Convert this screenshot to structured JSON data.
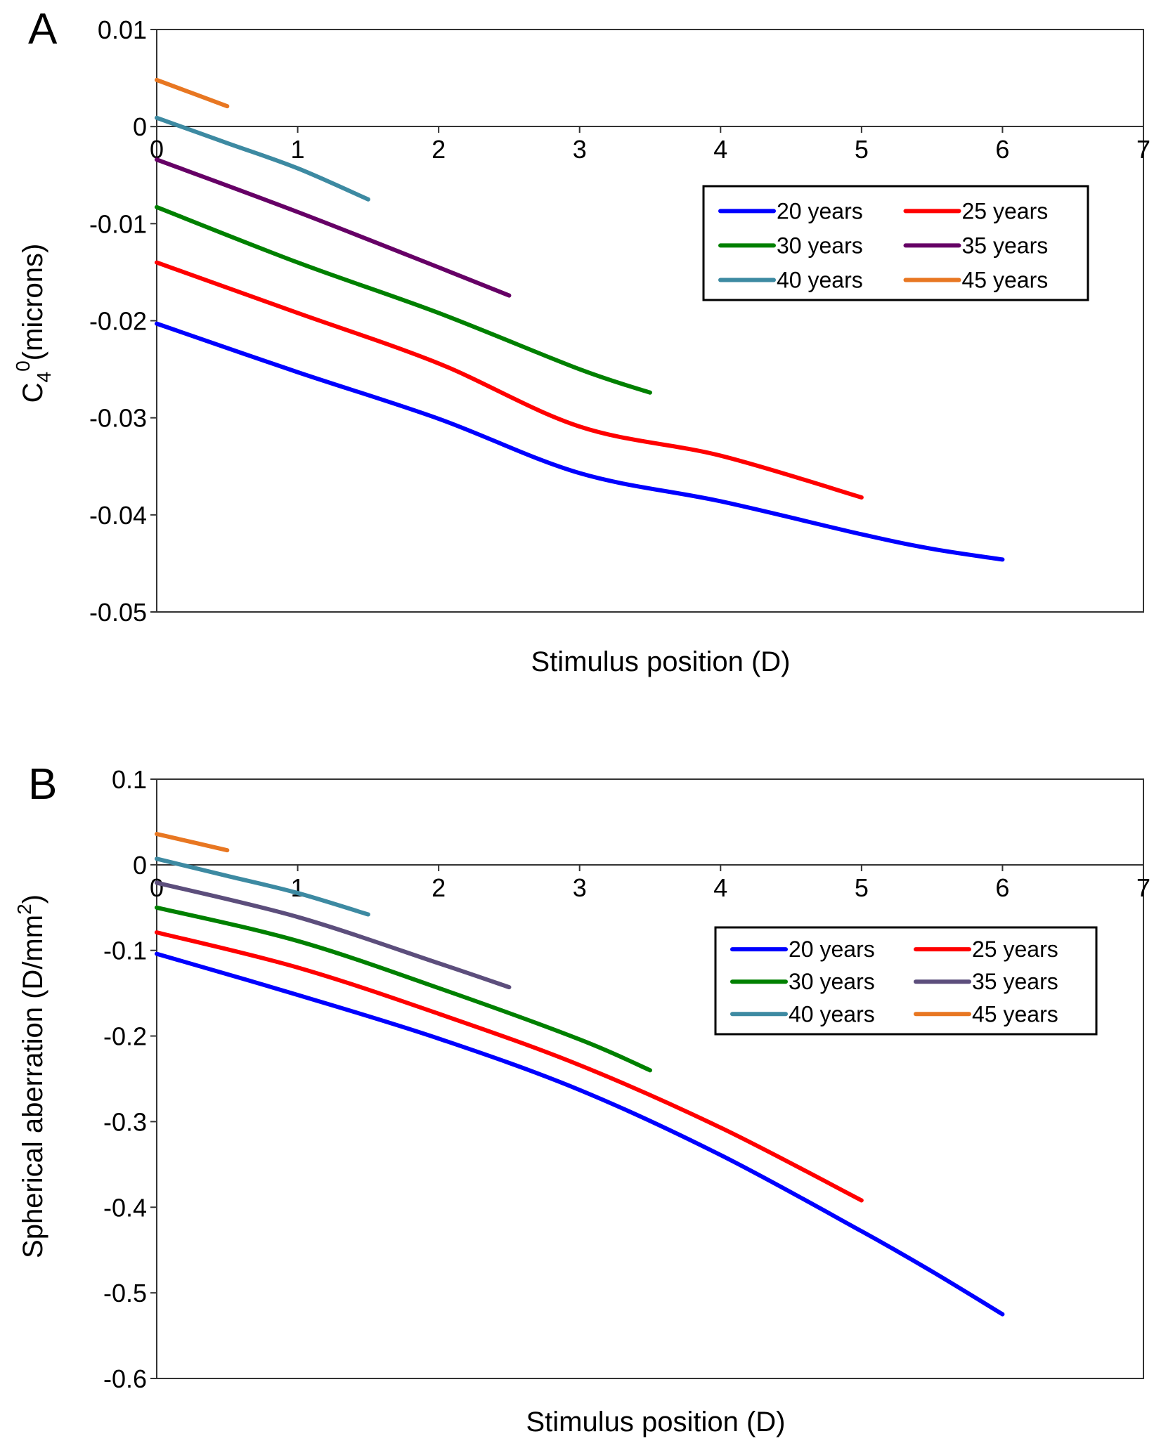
{
  "chart_data": [
    {
      "panel": "A",
      "type": "line",
      "xlabel": "Stimulus position (D)",
      "ylabel": "C4^0(microns)",
      "ylabel_parts": {
        "base": "C",
        "sub": "4",
        "sup": "0",
        "rest": "(microns)"
      },
      "xlim": [
        0,
        7
      ],
      "ylim": [
        -0.05,
        0.01
      ],
      "xticks": [
        0,
        1,
        2,
        3,
        4,
        5,
        6,
        7
      ],
      "xtick_labels": [
        "0",
        "1",
        "2",
        "3",
        "4",
        "5",
        "6",
        "7"
      ],
      "yticks": [
        0.01,
        0,
        -0.01,
        -0.02,
        -0.03,
        -0.04,
        -0.05
      ],
      "ytick_labels": [
        "0.01",
        "0",
        "-0.01",
        "-0.02",
        "-0.03",
        "-0.04",
        "-0.05"
      ],
      "grid": false,
      "legend_position": "upper-right",
      "series": [
        {
          "name": "20 years",
          "color": "#0000ff",
          "x": [
            0,
            1,
            2,
            3,
            4,
            5,
            5.5,
            6
          ],
          "y": [
            -0.0203,
            -0.0253,
            -0.0301,
            -0.0357,
            -0.0386,
            -0.042,
            -0.0435,
            -0.0446
          ]
        },
        {
          "name": "25 years",
          "color": "#ff0000",
          "x": [
            0,
            1,
            2,
            3,
            4,
            5
          ],
          "y": [
            -0.014,
            -0.0192,
            -0.0244,
            -0.0309,
            -0.0339,
            -0.0382
          ]
        },
        {
          "name": "30 years",
          "color": "#008000",
          "x": [
            0,
            1,
            2,
            3,
            3.5
          ],
          "y": [
            -0.0083,
            -0.014,
            -0.0192,
            -0.025,
            -0.0274
          ]
        },
        {
          "name": "35 years",
          "color": "#660066",
          "x": [
            0,
            1,
            2,
            2.5
          ],
          "y": [
            -0.0034,
            -0.0088,
            -0.0145,
            -0.0174
          ]
        },
        {
          "name": "40 years",
          "color": "#3d8aa2",
          "x": [
            0,
            0.5,
            1,
            1.5
          ],
          "y": [
            0.0009,
            -0.0017,
            -0.0043,
            -0.0075
          ]
        },
        {
          "name": "45 years",
          "color": "#e87722",
          "x": [
            0,
            0.5
          ],
          "y": [
            0.0048,
            0.0021
          ]
        }
      ]
    },
    {
      "panel": "B",
      "type": "line",
      "xlabel": "Stimulus position (D)",
      "ylabel": "Spherical aberration (D/mm2)",
      "ylabel_parts": {
        "base": "Spherical aberration (D/mm",
        "sup": "2",
        "rest": ")"
      },
      "xlim": [
        0,
        7
      ],
      "ylim": [
        -0.6,
        0.1
      ],
      "xticks": [
        0,
        1,
        2,
        3,
        4,
        5,
        6,
        7
      ],
      "xtick_labels": [
        "0",
        "1",
        "2",
        "3",
        "4",
        "5",
        "6",
        "7"
      ],
      "yticks": [
        0.1,
        0,
        -0.1,
        -0.2,
        -0.3,
        -0.4,
        -0.5,
        -0.6
      ],
      "ytick_labels": [
        "0.1",
        "0",
        "-0.1",
        "-0.2",
        "-0.3",
        "-0.4",
        "-0.5",
        "-0.6"
      ],
      "grid": false,
      "legend_position": "upper-right",
      "series": [
        {
          "name": "20 years",
          "color": "#0000ff",
          "x": [
            0,
            1,
            2,
            3,
            4,
            5,
            5.5,
            6
          ],
          "y": [
            -0.104,
            -0.152,
            -0.203,
            -0.263,
            -0.339,
            -0.428,
            -0.475,
            -0.525
          ]
        },
        {
          "name": "25 years",
          "color": "#ff0000",
          "x": [
            0,
            1,
            2,
            3,
            4,
            5
          ],
          "y": [
            -0.079,
            -0.12,
            -0.174,
            -0.234,
            -0.307,
            -0.392
          ]
        },
        {
          "name": "30 years",
          "color": "#008000",
          "x": [
            0,
            1,
            2,
            3,
            3.5
          ],
          "y": [
            -0.05,
            -0.089,
            -0.144,
            -0.204,
            -0.24
          ]
        },
        {
          "name": "35 years",
          "color": "#5c4e7c",
          "x": [
            0,
            1,
            2,
            2.5
          ],
          "y": [
            -0.021,
            -0.061,
            -0.115,
            -0.143
          ]
        },
        {
          "name": "40 years",
          "color": "#3d8aa2",
          "x": [
            0,
            0.5,
            1,
            1.5
          ],
          "y": [
            0.007,
            -0.013,
            -0.033,
            -0.058
          ]
        },
        {
          "name": "45 years",
          "color": "#e87722",
          "x": [
            0,
            0.5
          ],
          "y": [
            0.036,
            0.017
          ]
        }
      ]
    }
  ]
}
